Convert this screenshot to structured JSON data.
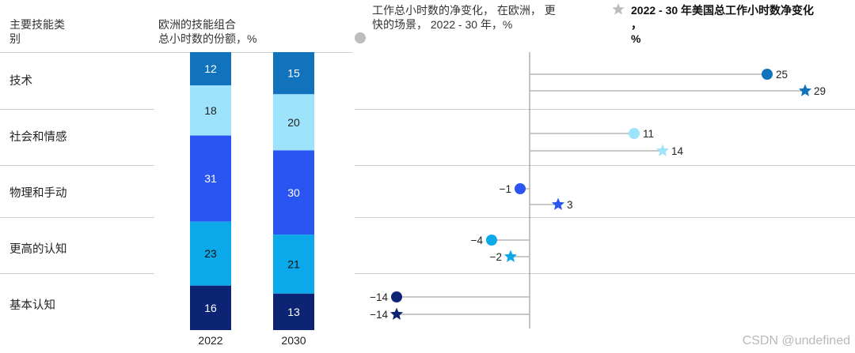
{
  "headers": {
    "category": [
      "主要技能类",
      "别"
    ],
    "share": [
      "欧洲的技能组合",
      "总小时数的份额，%"
    ],
    "europe_change": [
      "工作总小时数的净变化， 在欧洲， 更",
      "快的场景， 2022 - 30 年，%"
    ],
    "us_change": [
      "2022 - 30 年美国总工作小时数净变化",
      "，",
      "%"
    ]
  },
  "colors": {
    "background": "#ffffff",
    "legend_circle": "#bdbdbd",
    "legend_star": "#bdbdbd",
    "stem": "#b5b5b5",
    "axis": "#8a8a8a"
  },
  "watermark": "CSDN @undefined",
  "chart_data": [
    {
      "type": "bar",
      "stacked": true,
      "x": [
        "2022",
        "2030"
      ],
      "categories": [
        "技术",
        "社会和情感",
        "物理和手动",
        "更高的认知",
        "基本认知"
      ],
      "series": [
        {
          "name": "技术",
          "color": "#1273bd",
          "label_color": "#ffffff",
          "values": [
            12,
            15
          ]
        },
        {
          "name": "社会和情感",
          "color": "#9de3fb",
          "label_color": "#222222",
          "values": [
            18,
            20
          ]
        },
        {
          "name": "物理和手动",
          "color": "#2a55f2",
          "label_color": "#ffffff",
          "values": [
            31,
            30
          ]
        },
        {
          "name": "更高的认知",
          "color": "#0ca9ea",
          "label_color": "#111111",
          "values": [
            23,
            21
          ]
        },
        {
          "name": "基本认知",
          "color": "#0d2475",
          "label_color": "#ffffff",
          "values": [
            16,
            13
          ]
        }
      ]
    },
    {
      "type": "scatter",
      "style": "lollipop",
      "categories": [
        "技术",
        "社会和情感",
        "物理和手动",
        "更高的认知",
        "基本认知"
      ],
      "colors": [
        "#1273bd",
        "#9de3fb",
        "#2a55f2",
        "#0ca9ea",
        "#0d2475"
      ],
      "europe_values": [
        25,
        11,
        -1,
        -4,
        -14
      ],
      "us_values": [
        29,
        14,
        3,
        -2,
        -14
      ],
      "europe_labels": [
        "25",
        "11",
        "−1",
        "−4",
        "−14"
      ],
      "us_labels": [
        "29",
        "14",
        "3",
        "−2",
        "−14"
      ],
      "xlim": [
        -15,
        30
      ],
      "zero_line": true
    }
  ]
}
